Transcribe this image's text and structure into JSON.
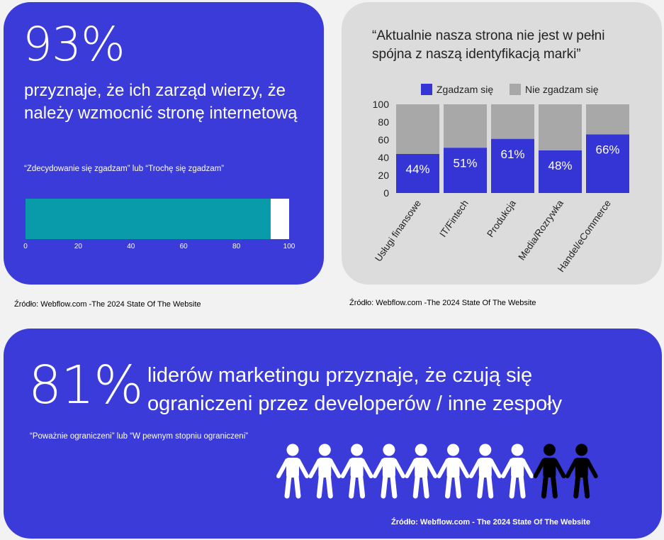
{
  "card1": {
    "stat": "93%",
    "description": "przyznaje, że ich zarząd wierzy, że należy wzmocnić stronę internetową",
    "note": "“Zdecydowanie się zgadzam” lub “Trochę się zgadzam”",
    "source": "Źródło: Webflow.com -The 2024 State Of The Website"
  },
  "card2": {
    "quote": "“Aktualnie nasza strona nie jest w pełni spójna z naszą identyfikacją marki”",
    "source": "Źródło: Webflow.com -The 2024 State Of The Website"
  },
  "card3": {
    "stat": "81%",
    "description": "liderów marketingu przyznaje, że  czują się ograniczeni przez developerów / inne zespoły",
    "note": "“Poważnie ograniczeni” lub “W pewnym stopniu ograniczeni”",
    "source": "Źródło: Webflow.com - The 2024 State Of The Website"
  },
  "colors": {
    "card_blue": "#3b3bd9",
    "bar_teal": "#0a9baa",
    "agree": "#3535d6",
    "disagree": "#a8a8a8",
    "card_grey": "#dcdcdc"
  },
  "chart_data": [
    {
      "type": "bar",
      "orientation": "horizontal",
      "values": [
        93
      ],
      "xlim": [
        0,
        100
      ],
      "ticks": [
        0,
        20,
        40,
        60,
        80,
        100
      ],
      "grid": false
    },
    {
      "type": "bar",
      "stacked": true,
      "categories": [
        "Usługi finansowe",
        "IT/Fintech",
        "Produkcja",
        "Media/Rozrywka",
        "Handel/eCommerce"
      ],
      "series": [
        {
          "name": "Zgadzam się",
          "values": [
            44,
            51,
            61,
            48,
            66
          ],
          "labels": [
            "44%",
            "51%",
            "61%",
            "48%",
            "66%"
          ]
        },
        {
          "name": "Nie zgadzam się",
          "values": [
            56,
            49,
            39,
            52,
            34
          ]
        }
      ],
      "ylim": [
        0,
        100
      ],
      "yticks": [
        0,
        20,
        40,
        60,
        80,
        100
      ],
      "legend": "top",
      "grid": false
    },
    {
      "type": "pictogram",
      "total": 10,
      "highlighted": 8
    }
  ]
}
